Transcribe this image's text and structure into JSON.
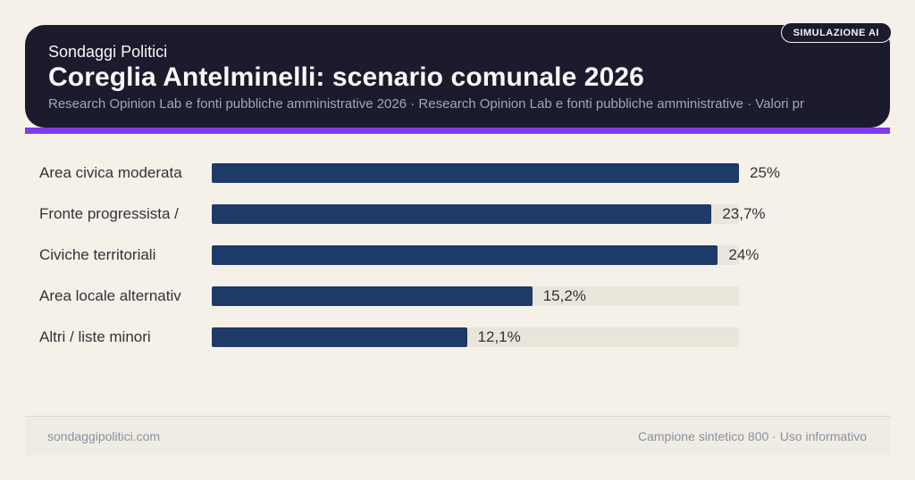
{
  "badge": {
    "label": "SIMULAZIONE AI"
  },
  "header": {
    "kicker": "Sondaggi Politici",
    "title": "Coreglia Antelminelli: scenario comunale 2026",
    "subtitle": "Research Opinion Lab e fonti pubbliche amministrative 2026 · Research Opinion Lab e fonti pubbliche amministrative · Valori pr"
  },
  "chart_data": {
    "type": "bar",
    "orientation": "horizontal",
    "categories": [
      "Area civica moderata",
      "Fronte progressista /",
      "Civiche territoriali",
      "Area locale alternativ",
      "Altri / liste minori"
    ],
    "values": [
      25,
      23.7,
      24,
      15.2,
      12.1
    ],
    "value_labels": [
      "25%",
      "23,7%",
      "24%",
      "15,2%",
      "12,1%"
    ],
    "xlim": [
      0,
      25
    ],
    "grid": false,
    "legend": false,
    "bar_color": "#1d3a68",
    "track_color": "#e9e5db"
  },
  "colors": {
    "background": "#f5f0e8",
    "header_card": "#1b1b2d",
    "accent_underline": "#7d3bea",
    "bar": "#1d3a68",
    "bar_track": "#e9e5db",
    "footer_background": "#efece4",
    "footer_text": "#8c919b",
    "label_text": "#32323a",
    "subtitle_text": "#a5a5ba"
  },
  "footer": {
    "left": "sondaggipolitici.com",
    "right": "Campione sintetico 800 · Uso informativo"
  }
}
